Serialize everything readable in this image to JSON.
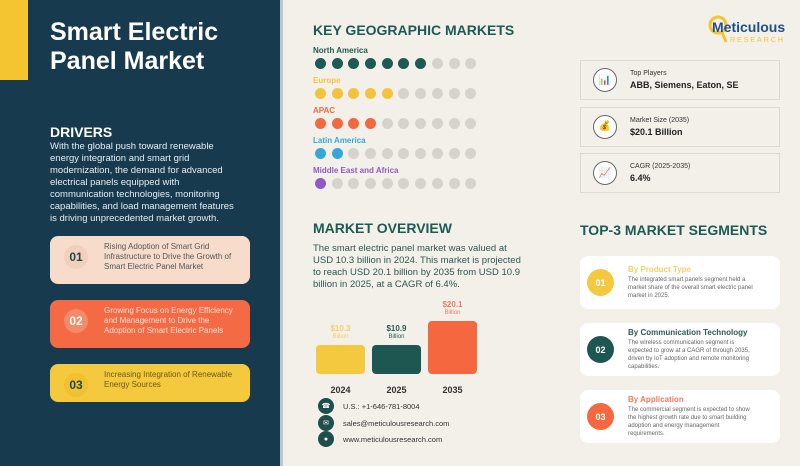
{
  "title": "Smart Electric Panel Market",
  "drivers": {
    "heading": "DRIVERS",
    "text": "With the global push toward renewable energy integration and smart grid modernization, the demand for advanced electrical panels equipped with communication technologies, monitoring capabilities, and load management features is driving unprecedented market growth.",
    "items": [
      {
        "num": "01",
        "text": "Rising Adoption of Smart Grid Infrastructure to Drive the Growth of Smart Electric Panel Market",
        "bg": "#f8dccb",
        "circle": "#f3d0bd",
        "color": "#555"
      },
      {
        "num": "02",
        "text": "Growing Focus on Energy Efficiency and Management to Drive the Adoption of Smart Electric Panels",
        "bg": "#f46a44",
        "circle": "#f58a6b",
        "color": "#fde2d8"
      },
      {
        "num": "03",
        "text": "Increasing Integration of Renewable Energy Sources",
        "bg": "#f4c93d",
        "circle": "#f0c130",
        "color": "#6b5a1c"
      }
    ]
  },
  "geo": {
    "heading": "KEY GEOGRAPHIC MARKETS",
    "regions": [
      {
        "name": "North America",
        "filled": 7,
        "total": 10,
        "color": "#1e5a52"
      },
      {
        "name": "Europe",
        "filled": 5,
        "total": 10,
        "color": "#f4c33e"
      },
      {
        "name": "APAC",
        "filled": 4,
        "total": 10,
        "color": "#f26841"
      },
      {
        "name": "Latin America",
        "filled": 2,
        "total": 10,
        "color": "#35a8d8"
      },
      {
        "name": "Middle East and Africa",
        "filled": 1,
        "total": 10,
        "color": "#8e5bc0"
      }
    ]
  },
  "logo": {
    "name": "Meticulous",
    "sub": "RESEARCH"
  },
  "info": [
    {
      "label": "Top Players",
      "value": "ABB, Siemens, Eaton, SE",
      "icon": "bar-chart-icon",
      "glyph": "📊"
    },
    {
      "label": "Market Size (2035)",
      "value": "$20.1 Billion",
      "icon": "money-bag-icon",
      "glyph": "💰"
    },
    {
      "label": "CAGR (2025-2035)",
      "value": "6.4%",
      "icon": "growth-chart-icon",
      "glyph": "📈"
    }
  ],
  "overview": {
    "heading": "MARKET OVERVIEW",
    "text": "The smart electric panel market was valued at USD 10.3 billion in 2024. This market is projected to reach USD 20.1 billion by 2035 from USD 10.9 billion in 2025, at a CAGR of 6.4%."
  },
  "chart_data": {
    "type": "bar",
    "categories": [
      "2024",
      "2025",
      "2035"
    ],
    "values": [
      10.3,
      10.9,
      20.1
    ],
    "labels": [
      "$10.3",
      "$10.9",
      "$20.1"
    ],
    "unit": "Billion",
    "colors": [
      "#f4c83f",
      "#1e5752",
      "#f5673f"
    ],
    "label_colors": [
      "#f1cf68",
      "#2a5a55",
      "#ef7a5e"
    ]
  },
  "contact": {
    "phone": "U.S.: +1-646-781-8004",
    "email": "sales@meticulousresearch.com",
    "web": "www.meticulousresearch.com"
  },
  "segments": {
    "heading": "TOP-3 MARKET SEGMENTS",
    "items": [
      {
        "num": "01",
        "title": "By Product Type",
        "text": "The integrated smart panels segment held a market share of the overall smart electric panel market in 2025.",
        "color": "#f4c83f",
        "title_color": "#f1cf68"
      },
      {
        "num": "02",
        "title": "By Communication Technology",
        "text": "The wireless communication segment is expected to grow at a CAGR of through 2035, driven by IoT adoption and remote monitoring capabilities.",
        "color": "#1e5752",
        "title_color": "#2a5a55"
      },
      {
        "num": "03",
        "title": "By Application",
        "text": "The commercial segment is expected to show the highest growth rate due to smart building adoption and energy management requirements.",
        "color": "#f5673f",
        "title_color": "#ef7a5e"
      }
    ]
  }
}
